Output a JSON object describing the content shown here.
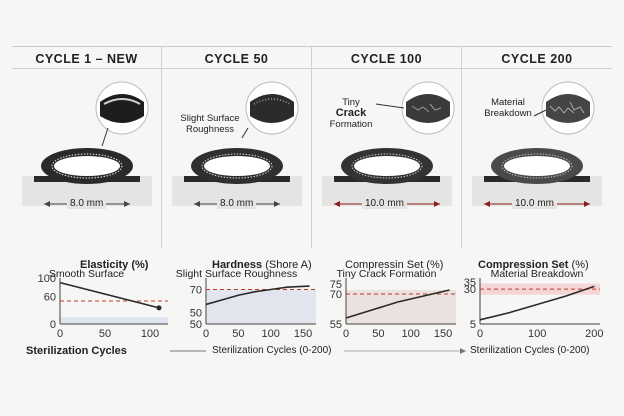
{
  "panels": [
    {
      "title": "CYCLE 1 – NEW",
      "width": "8.0 mm",
      "caption": "Smooth Surface",
      "callout": ""
    },
    {
      "title": "CYCLE 50",
      "width": "8.0 mm",
      "caption": "Slight Surface Roughness",
      "callout": "Slight Surface Roughness"
    },
    {
      "title": "CYCLE 100",
      "width": "10.0 mm",
      "caption": "Tiny Crack Formation",
      "callout_a": "Tiny",
      "callout_b": "Crack",
      "callout_c": "Formation"
    },
    {
      "title": "CYCLE 200",
      "width": "10.0 mm",
      "caption": "Material Breakdown",
      "callout": "Material Breakdown"
    }
  ],
  "colors": {
    "dim_normal": "#444444",
    "dim_alert": "#8b1e1e",
    "seal": "#2a2a2a",
    "ref_line": "#c0392b"
  },
  "graphs": {
    "xlabel_left": "Sterilization Cycles",
    "xlabel_mid": "Sterilization Cycles (0-200)",
    "xlabel_right": "Sterilization Cycles (0-200)"
  },
  "chart_data": [
    {
      "type": "line",
      "title": "Elasticity (%)",
      "x": [
        0,
        110
      ],
      "y": [
        90,
        35
      ],
      "yticks": [
        "100",
        "60",
        "0"
      ],
      "xticks": [
        "0",
        "50",
        "100"
      ],
      "ref_value": 50
    },
    {
      "type": "line",
      "title": "Hardness",
      "title_unit": "(Shore A)",
      "x": [
        0,
        25,
        50,
        75,
        100,
        125,
        160
      ],
      "y": [
        57,
        61,
        65,
        68,
        70,
        72,
        73
      ],
      "yticks": [
        "70",
        "50",
        "50"
      ],
      "xticks": [
        "0",
        "50",
        "100",
        "150"
      ],
      "ref_value": 70
    },
    {
      "type": "line",
      "title": "Compressin Set (%)",
      "x": [
        0,
        40,
        80,
        120,
        160
      ],
      "y": [
        58,
        62,
        66,
        69,
        72
      ],
      "yticks": [
        "75",
        "70",
        "55"
      ],
      "xticks": [
        "0",
        "50",
        "100",
        "150"
      ],
      "ref_value": 70
    },
    {
      "type": "line",
      "title": "Compression Set",
      "title_unit": "(%)",
      "x": [
        0,
        50,
        100,
        150,
        200
      ],
      "y": [
        8,
        13,
        19,
        25,
        32
      ],
      "yticks": [
        "35",
        "30",
        "5"
      ],
      "xticks": [
        "0",
        "100",
        "200"
      ],
      "ref_value": 30
    }
  ]
}
